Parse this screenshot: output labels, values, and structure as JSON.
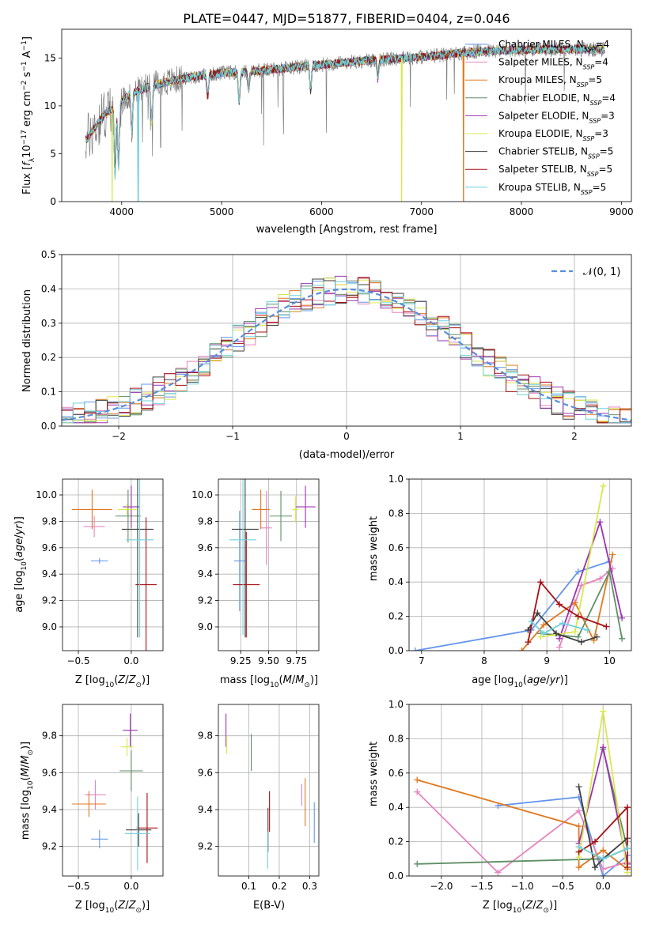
{
  "figure_title": "PLATE=0447, MJD=51877, FIBERID=0404, z=0.046",
  "colors": {
    "Chabrier MILES": "#6495ed",
    "Salpeter MILES": "#e783be",
    "Kroupa MILES": "#e0781e",
    "Chabrier ELODIE": "#5f8f66",
    "Salpeter ELODIE": "#9a33b0",
    "Kroupa ELODIE": "#d8e84c",
    "Chabrier STELIB": "#404040",
    "Salpeter STELIB": "#a60f14",
    "Kroupa STELIB": "#6fd0dc"
  },
  "chart_data": [
    {
      "id": "spectrum",
      "type": "line",
      "title": "PLATE=0447, MJD=51877, FIBERID=0404, z=0.046",
      "xlabel": "wavelength [Angstrom, rest frame]",
      "ylabel": "Flux [f_λ 10^-17 erg cm^-2 s^-1 A^-1]",
      "xlim": [
        3400,
        9100
      ],
      "ylim": [
        0,
        18
      ],
      "xticks": [
        4000,
        5000,
        6000,
        7000,
        8000,
        9000
      ],
      "yticks": [
        0,
        5,
        10,
        15
      ],
      "legend_position": "top-right",
      "legend": [
        {
          "label": "Chabrier MILES",
          "nssp": "4"
        },
        {
          "label": "Salpeter MILES",
          "nssp": "4"
        },
        {
          "label": "Kroupa MILES",
          "nssp": "5"
        },
        {
          "label": "Chabrier ELODIE",
          "nssp": "4"
        },
        {
          "label": "Salpeter ELODIE",
          "nssp": "3"
        },
        {
          "label": "Kroupa ELODIE",
          "nssp": "3"
        },
        {
          "label": "Chabrier STELIB",
          "nssp": "5"
        },
        {
          "label": "Salpeter STELIB",
          "nssp": "5"
        },
        {
          "label": "Kroupa STELIB",
          "nssp": "5"
        }
      ],
      "data_continuum": {
        "x": [
          3650,
          3800,
          3950,
          4100,
          4300,
          4500,
          4700,
          4900,
          5100,
          5300,
          5500,
          5800,
          6100,
          6400,
          6700,
          7000,
          7300,
          7600,
          7900,
          8200,
          8500,
          8800
        ],
        "y": [
          6.5,
          8.8,
          10.2,
          11.3,
          12.1,
          12.6,
          13.0,
          13.3,
          13.5,
          13.6,
          13.8,
          14.1,
          14.4,
          14.7,
          14.9,
          15.1,
          15.4,
          15.7,
          15.8,
          15.9,
          15.9,
          15.9
        ]
      },
      "absorption_features": [
        {
          "x": 3934,
          "depth": 7.5
        },
        {
          "x": 3969,
          "depth": 6.8
        },
        {
          "x": 4102,
          "depth": 4.0
        },
        {
          "x": 4300,
          "depth": 3.8
        },
        {
          "x": 4861,
          "depth": 2.2
        },
        {
          "x": 5175,
          "depth": 3.2
        },
        {
          "x": 5270,
          "depth": 1.8
        },
        {
          "x": 5890,
          "depth": 2.6
        },
        {
          "x": 6563,
          "depth": 2.0
        }
      ],
      "model_dropouts": [
        {
          "x": 3905,
          "series": "Kroupa ELODIE"
        },
        {
          "x": 4165,
          "series": "Kroupa STELIB"
        },
        {
          "x": 6800,
          "series": "Kroupa ELODIE"
        },
        {
          "x": 7420,
          "series": "Kroupa MILES"
        }
      ]
    },
    {
      "id": "residuals",
      "type": "histogram",
      "xlabel": "(data-model)/error",
      "ylabel": "Normed distribution",
      "xlim": [
        -2.5,
        2.5
      ],
      "ylim": [
        0,
        0.5
      ],
      "xticks": [
        -2,
        -1,
        0,
        1,
        2
      ],
      "yticks": [
        0.0,
        0.1,
        0.2,
        0.3,
        0.4,
        0.5
      ],
      "grid": true,
      "bin_width": 0.1,
      "bin_start": -2.5,
      "gaussian_label": "𝒩(0, 1)",
      "legend_position": "top-right",
      "series_order": [
        "Chabrier MILES",
        "Salpeter MILES",
        "Kroupa MILES",
        "Chabrier ELODIE",
        "Salpeter ELODIE",
        "Kroupa ELODIE",
        "Chabrier STELIB",
        "Salpeter STELIB",
        "Kroupa STELIB"
      ]
    },
    {
      "id": "age_vs_Z",
      "type": "errorbar",
      "xlabel": "Z [log10(Z/Z⊙)]",
      "ylabel": "age [log10(age/yr)]",
      "xlim": [
        -0.65,
        0.3
      ],
      "ylim": [
        8.82,
        10.12
      ],
      "xticks": [
        -0.5,
        0.0
      ],
      "xticklabels": [
        "−0.5",
        "0.0"
      ],
      "yticks": [
        9.0,
        9.2,
        9.4,
        9.6,
        9.8,
        10.0
      ],
      "points": [
        {
          "series": "Chabrier MILES",
          "x": -0.3,
          "y": 9.5,
          "xerr": 0.08,
          "yerr": 0.02
        },
        {
          "series": "Salpeter MILES",
          "x": -0.35,
          "y": 9.76,
          "xerr": 0.1,
          "yerr": 0.08
        },
        {
          "series": "Kroupa MILES",
          "x": -0.37,
          "y": 9.89,
          "xerr": 0.19,
          "yerr": 0.15
        },
        {
          "series": "Chabrier ELODIE",
          "x": -0.03,
          "y": 9.84,
          "xerr": 0.12,
          "yerr": 0.2
        },
        {
          "series": "Salpeter ELODIE",
          "x": 0.0,
          "y": 9.91,
          "xerr": 0.08,
          "yerr": 0.16
        },
        {
          "series": "Kroupa ELODIE",
          "x": -0.04,
          "y": 9.89,
          "xerr": 0.09,
          "yerr": 0.04
        },
        {
          "series": "Chabrier STELIB",
          "x": 0.06,
          "y": 9.74,
          "xerr": 0.15,
          "yerr": 0.82
        },
        {
          "series": "Salpeter STELIB",
          "x": 0.14,
          "y": 9.32,
          "xerr": 0.1,
          "yerr": 0.51
        },
        {
          "series": "Kroupa STELIB",
          "x": 0.08,
          "y": 9.66,
          "xerr": 0.13,
          "yerr": 0.74
        }
      ]
    },
    {
      "id": "age_vs_mass",
      "type": "errorbar",
      "xlabel": "mass [log10(M/M⊙)]",
      "ylabel": "",
      "xlim": [
        9.05,
        9.95
      ],
      "ylim": [
        8.82,
        10.12
      ],
      "xticks": [
        9.25,
        9.5,
        9.75
      ],
      "yticks": [
        9.0,
        9.2,
        9.4,
        9.6,
        9.8,
        10.0
      ],
      "points": [
        {
          "series": "Chabrier MILES",
          "x": 9.24,
          "y": 9.5,
          "xerr": 0.05,
          "yerr": 0.38
        },
        {
          "series": "Salpeter MILES",
          "x": 9.48,
          "y": 9.75,
          "xerr": 0.05,
          "yerr": 0.28
        },
        {
          "series": "Kroupa MILES",
          "x": 9.43,
          "y": 9.89,
          "xerr": 0.08,
          "yerr": 0.15
        },
        {
          "series": "Chabrier ELODIE",
          "x": 9.61,
          "y": 9.84,
          "xerr": 0.1,
          "yerr": 0.19
        },
        {
          "series": "Salpeter ELODIE",
          "x": 9.83,
          "y": 9.91,
          "xerr": 0.09,
          "yerr": 0.16
        },
        {
          "series": "Kroupa ELODIE",
          "x": 9.74,
          "y": 9.89,
          "xerr": 0.03,
          "yerr": 0.1
        },
        {
          "series": "Chabrier STELIB",
          "x": 9.29,
          "y": 9.74,
          "xerr": 0.12,
          "yerr": 0.82
        },
        {
          "series": "Salpeter STELIB",
          "x": 9.3,
          "y": 9.32,
          "xerr": 0.12,
          "yerr": 0.4
        },
        {
          "series": "Kroupa STELIB",
          "x": 9.27,
          "y": 9.66,
          "xerr": 0.12,
          "yerr": 0.72
        }
      ]
    },
    {
      "id": "weight_vs_age",
      "type": "line",
      "xlabel": "age [log10(age/yr)]",
      "ylabel": "mass weight",
      "xlim": [
        6.8,
        10.35
      ],
      "ylim": [
        0,
        1.0
      ],
      "xticks": [
        7,
        8,
        9,
        10
      ],
      "yticks": [
        0.0,
        0.2,
        0.4,
        0.6,
        0.8,
        1.0
      ],
      "grid": true,
      "series": [
        {
          "name": "Chabrier MILES",
          "x": [
            6.9,
            8.75,
            9.5,
            10.0
          ],
          "y": [
            0.0,
            0.12,
            0.46,
            0.52
          ]
        },
        {
          "name": "Salpeter MILES",
          "x": [
            9.2,
            9.55,
            9.85,
            10.05
          ],
          "y": [
            0.02,
            0.38,
            0.42,
            0.48
          ]
        },
        {
          "name": "Kroupa MILES",
          "x": [
            8.6,
            8.95,
            9.45,
            9.75,
            10.05
          ],
          "y": [
            0.0,
            0.15,
            0.28,
            0.06,
            0.56
          ]
        },
        {
          "name": "Chabrier ELODIE",
          "x": [
            8.9,
            9.5,
            10.0,
            10.2
          ],
          "y": [
            0.1,
            0.08,
            0.46,
            0.07
          ]
        },
        {
          "name": "Salpeter ELODIE",
          "x": [
            9.2,
            9.85,
            10.2
          ],
          "y": [
            0.07,
            0.75,
            0.19
          ]
        },
        {
          "name": "Kroupa ELODIE",
          "x": [
            8.9,
            9.45,
            9.9
          ],
          "y": [
            0.08,
            0.11,
            0.96
          ]
        },
        {
          "name": "Chabrier STELIB",
          "x": [
            8.7,
            8.85,
            9.15,
            9.55,
            9.8
          ],
          "y": [
            0.12,
            0.22,
            0.1,
            0.05,
            0.08
          ]
        },
        {
          "name": "Salpeter STELIB",
          "x": [
            8.7,
            8.9,
            9.2,
            9.5,
            9.95
          ],
          "y": [
            0.05,
            0.4,
            0.27,
            0.2,
            0.14
          ]
        },
        {
          "name": "Kroupa STELIB",
          "x": [
            8.75,
            8.95,
            9.25,
            9.65
          ],
          "y": [
            0.17,
            0.1,
            0.16,
            0.12
          ]
        }
      ]
    },
    {
      "id": "mass_vs_Z",
      "type": "errorbar",
      "xlabel": "Z [log10(Z/Z⊙)]",
      "ylabel": "mass [log10(M/M⊙)]",
      "xlim": [
        -0.65,
        0.3
      ],
      "ylim": [
        9.04,
        9.97
      ],
      "xticks": [
        -0.5,
        0.0
      ],
      "xticklabels": [
        "−0.5",
        "0.0"
      ],
      "yticks": [
        9.2,
        9.4,
        9.6,
        9.8
      ],
      "points": [
        {
          "series": "Chabrier MILES",
          "x": -0.3,
          "y": 9.24,
          "xerr": 0.08,
          "yerr": 0.05
        },
        {
          "series": "Salpeter MILES",
          "x": -0.34,
          "y": 9.48,
          "xerr": 0.1,
          "yerr": 0.08
        },
        {
          "series": "Kroupa MILES",
          "x": -0.4,
          "y": 9.43,
          "xerr": 0.16,
          "yerr": 0.07
        },
        {
          "series": "Chabrier ELODIE",
          "x": 0.0,
          "y": 9.61,
          "xerr": 0.11,
          "yerr": 0.11
        },
        {
          "series": "Salpeter ELODIE",
          "x": -0.01,
          "y": 9.83,
          "xerr": 0.07,
          "yerr": 0.09
        },
        {
          "series": "Kroupa ELODIE",
          "x": -0.04,
          "y": 9.74,
          "xerr": 0.06,
          "yerr": 0.05
        },
        {
          "series": "Chabrier STELIB",
          "x": 0.07,
          "y": 9.29,
          "xerr": 0.12,
          "yerr": 0.09
        },
        {
          "series": "Salpeter STELIB",
          "x": 0.15,
          "y": 9.3,
          "xerr": 0.1,
          "yerr": 0.19
        },
        {
          "series": "Kroupa STELIB",
          "x": 0.06,
          "y": 9.27,
          "xerr": 0.12,
          "yerr": 0.2
        }
      ]
    },
    {
      "id": "mass_vs_ebv",
      "type": "errorbar",
      "xlabel": "E(B-V)",
      "ylabel": "",
      "xlim": [
        0.0,
        0.33
      ],
      "ylim": [
        9.04,
        9.97
      ],
      "xticks": [
        0.1,
        0.2,
        0.3
      ],
      "yticks": [
        9.2,
        9.4,
        9.6,
        9.8
      ],
      "points": [
        {
          "series": "Chabrier MILES",
          "x": 0.315,
          "y": 9.33,
          "xerr": 0.0,
          "yerr": 0.11
        },
        {
          "series": "Salpeter MILES",
          "x": 0.274,
          "y": 9.48,
          "xerr": 0.0,
          "yerr": 0.06
        },
        {
          "series": "Kroupa MILES",
          "x": 0.285,
          "y": 9.44,
          "xerr": 0.0,
          "yerr": 0.13
        },
        {
          "series": "Chabrier ELODIE",
          "x": 0.108,
          "y": 9.71,
          "xerr": 0.0,
          "yerr": 0.1
        },
        {
          "series": "Salpeter ELODIE",
          "x": 0.025,
          "y": 9.83,
          "xerr": 0.0,
          "yerr": 0.09
        },
        {
          "series": "Kroupa ELODIE",
          "x": 0.027,
          "y": 9.75,
          "xerr": 0.0,
          "yerr": 0.05
        },
        {
          "series": "Chabrier STELIB",
          "x": 0.163,
          "y": 9.29,
          "xerr": 0.0,
          "yerr": 0.12
        },
        {
          "series": "Salpeter STELIB",
          "x": 0.168,
          "y": 9.39,
          "xerr": 0.0,
          "yerr": 0.11
        },
        {
          "series": "Kroupa STELIB",
          "x": 0.162,
          "y": 9.18,
          "xerr": 0.0,
          "yerr": 0.1
        }
      ]
    },
    {
      "id": "weight_vs_Z",
      "type": "line",
      "xlabel": "Z [log10(Z/Z⊙)]",
      "ylabel": "mass weight",
      "xlim": [
        -2.4,
        0.35
      ],
      "ylim": [
        0,
        1.0
      ],
      "xticks": [
        -2.0,
        -1.5,
        -1.0,
        -0.5,
        0.0
      ],
      "xticklabels": [
        "−2.0",
        "−1.5",
        "−1.0",
        "−0.5",
        "0.0"
      ],
      "yticks": [
        0.0,
        0.2,
        0.4,
        0.6,
        0.8,
        1.0
      ],
      "grid": true,
      "series": [
        {
          "name": "Chabrier MILES",
          "x": [
            -1.3,
            -0.3,
            0.0,
            0.3
          ],
          "y": [
            0.41,
            0.46,
            0.0,
            0.12
          ]
        },
        {
          "name": "Salpeter MILES",
          "x": [
            -2.3,
            -1.3,
            -0.3,
            0.0,
            0.3
          ],
          "y": [
            0.49,
            0.02,
            0.38,
            0.04,
            0.08
          ]
        },
        {
          "name": "Kroupa MILES",
          "x": [
            -2.3,
            -0.3,
            -0.3,
            0.0,
            0.3
          ],
          "y": [
            0.56,
            0.29,
            0.05,
            0.15,
            0.04
          ]
        },
        {
          "name": "Chabrier ELODIE",
          "x": [
            -2.3,
            0.0,
            0.3,
            0.0
          ],
          "y": [
            0.07,
            0.1,
            0.16,
            0.74
          ]
        },
        {
          "name": "Salpeter ELODIE",
          "x": [
            -0.3,
            0.0,
            0.3
          ],
          "y": [
            0.19,
            0.75,
            0.07
          ]
        },
        {
          "name": "Kroupa ELODIE",
          "x": [
            -0.3,
            0.0,
            0.3
          ],
          "y": [
            0.11,
            0.96,
            0.02
          ]
        },
        {
          "name": "Chabrier STELIB",
          "x": [
            -0.3,
            -0.1,
            0.0,
            0.3
          ],
          "y": [
            0.52,
            0.05,
            0.1,
            0.22
          ]
        },
        {
          "name": "Salpeter STELIB",
          "x": [
            -0.3,
            -0.1,
            0.3,
            0.3
          ],
          "y": [
            0.14,
            0.2,
            0.4,
            0.05
          ]
        },
        {
          "name": "Kroupa STELIB",
          "x": [
            -0.3,
            0.0,
            0.3
          ],
          "y": [
            0.17,
            0.1,
            0.16
          ]
        }
      ]
    }
  ]
}
